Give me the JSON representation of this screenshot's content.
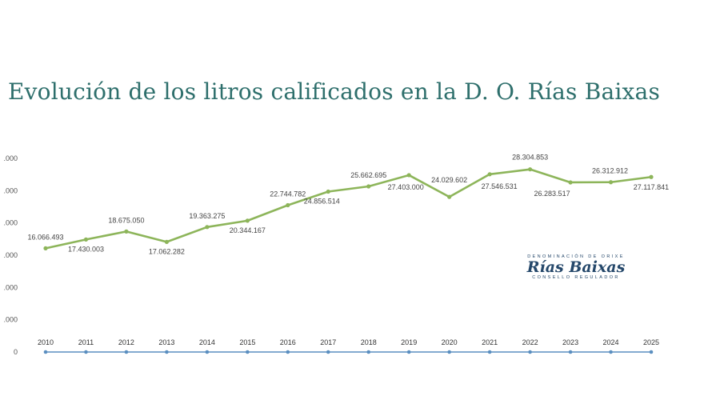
{
  "title": "Evolución de los litros calificados en la D. O. Rías Baixas",
  "logo": {
    "top": "DENOMINACIÓN DE ORIXE",
    "name": "Rías Baixas",
    "bottom": "CONSELLO REGULADOR"
  },
  "colors": {
    "title": "#2e6f6c",
    "line": "#8db55a",
    "baseline": "#5b8fc0"
  },
  "chart_data": {
    "type": "line",
    "title": "Evolución de los litros calificados en la D. O. Rías Baixas",
    "xlabel": "",
    "ylabel": "",
    "categories": [
      "2010",
      "2011",
      "2012",
      "2013",
      "2014",
      "2015",
      "2016",
      "2017",
      "2018",
      "2019",
      "2020",
      "2021",
      "2022",
      "2023",
      "2024",
      "2025"
    ],
    "y_tick_labels": [
      ".000",
      ".000",
      ".000",
      ".000",
      ".000",
      ".000",
      "0"
    ],
    "ylim": [
      0,
      30000000
    ],
    "grid": false,
    "legend": "none",
    "series": [
      {
        "values": [
          16066493,
          17430003,
          18675050,
          17062282,
          19363275,
          20344167,
          22744782,
          24856514,
          25662695,
          27403000,
          24029602,
          27546531,
          28304853,
          26283517,
          26312912,
          27117841
        ],
        "labels": [
          "16.066.493",
          "17.430.003",
          "18.675.050",
          "17.062.282",
          "19.363.275",
          "20.344.167",
          "22.744.782",
          "24.856.514",
          "25.662.695",
          "27.403.000",
          "24.029.602",
          "27.546.531",
          "28.304.853",
          "26.283.517",
          "26.312.912",
          "27.117.841"
        ]
      },
      {
        "values": [
          0,
          0,
          0,
          0,
          0,
          0,
          0,
          0,
          0,
          0,
          0,
          0,
          0,
          0,
          0,
          0
        ]
      }
    ]
  }
}
